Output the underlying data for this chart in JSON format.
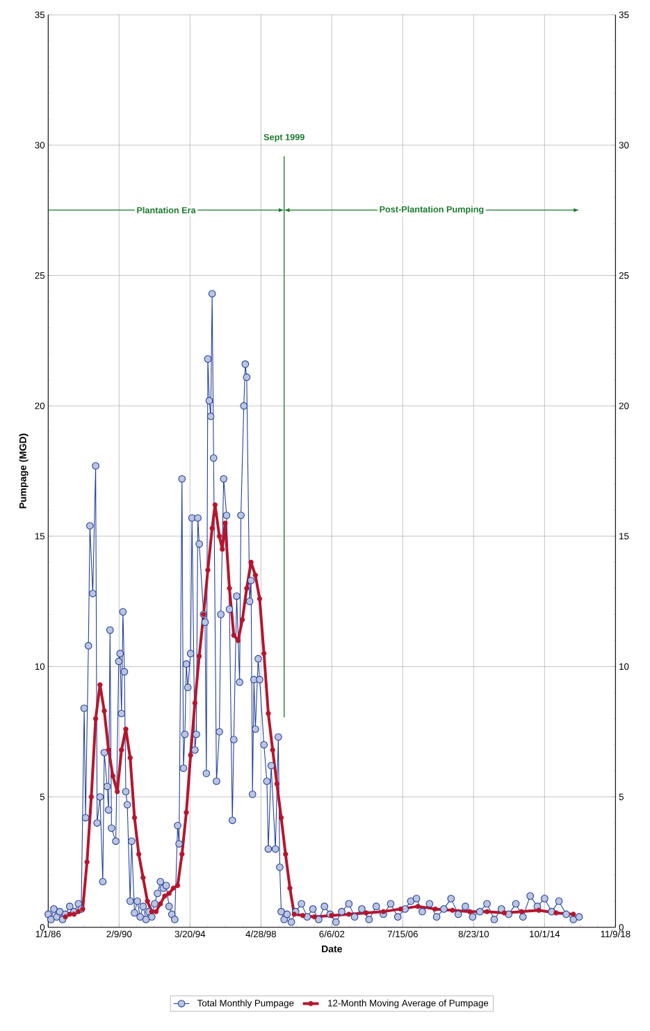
{
  "chart_data": {
    "type": "line",
    "xlabel": "Date",
    "ylabel": "Pumpage (MGD)",
    "xlim": [
      "1986-01-01",
      "2018-11-09"
    ],
    "xticks": [
      {
        "value": "1986-01-01",
        "label": "1/1/86"
      },
      {
        "value": "1990-02-09",
        "label": "2/9/90"
      },
      {
        "value": "1994-03-20",
        "label": "3/20/94"
      },
      {
        "value": "1998-04-28",
        "label": "4/28/98"
      },
      {
        "value": "2002-06-06",
        "label": "6/6/02"
      },
      {
        "value": "2006-07-15",
        "label": "7/15/06"
      },
      {
        "value": "2010-08-23",
        "label": "8/23/10"
      },
      {
        "value": "2014-10-01",
        "label": "10/1/14"
      },
      {
        "value": "2018-11-09",
        "label": "11/9/18"
      }
    ],
    "ylim": [
      0,
      35
    ],
    "yticks": [
      0,
      5,
      10,
      15,
      20,
      25,
      30,
      35
    ],
    "y2lim": [
      0,
      35
    ],
    "y2ticks": [
      0,
      5,
      10,
      15,
      20,
      25,
      30,
      35
    ],
    "grid": true,
    "legend": "bottom",
    "marker": "circle",
    "annotations": [
      "Plantation Era",
      "Post-Plantation Pumping"
    ],
    "ref_lines": [
      {
        "axis": "x",
        "value": "1999-09-01",
        "label": "Sept 1999",
        "color": "#1a7a2e"
      }
    ],
    "series": [
      {
        "name": "Total Monthly Pumpage",
        "color": "#1f3f99",
        "x": [
          "1986-01",
          "1986-03",
          "1986-05",
          "1986-07",
          "1986-09",
          "1986-11",
          "1987-01",
          "1987-04",
          "1987-07",
          "1987-10",
          "1987-12",
          "1988-02",
          "1988-03",
          "1988-05",
          "1988-06",
          "1988-08",
          "1988-10",
          "1988-11",
          "1989-01",
          "1989-03",
          "1989-04",
          "1989-06",
          "1989-07",
          "1989-08",
          "1989-09",
          "1989-12",
          "1990-02",
          "1990-03",
          "1990-04",
          "1990-05",
          "1990-06",
          "1990-07",
          "1990-08",
          "1990-10",
          "1990-11",
          "1991-01",
          "1991-03",
          "1991-05",
          "1991-07",
          "1991-09",
          "1991-11",
          "1992-01",
          "1992-03",
          "1992-05",
          "1992-07",
          "1992-09",
          "1992-11",
          "1993-01",
          "1993-03",
          "1993-05",
          "1993-07",
          "1993-08",
          "1993-10",
          "1993-11",
          "1993-12",
          "1994-01",
          "1994-02",
          "1994-04",
          "1994-05",
          "1994-07",
          "1994-08",
          "1994-09",
          "1994-10",
          "1995-01",
          "1995-02",
          "1995-03",
          "1995-04",
          "1995-05",
          "1995-06",
          "1995-07",
          "1995-08",
          "1995-10",
          "1995-12",
          "1996-01",
          "1996-03",
          "1996-05",
          "1996-07",
          "1996-09",
          "1996-10",
          "1996-12",
          "1997-02",
          "1997-03",
          "1997-05",
          "1997-06",
          "1997-07",
          "1997-09",
          "1997-10",
          "1997-11",
          "1997-12",
          "1998-01",
          "1998-03",
          "1998-04",
          "1998-07",
          "1998-09",
          "1998-10",
          "1998-12",
          "1999-03",
          "1999-05",
          "1999-06",
          "1999-07",
          "1999-09",
          "1999-11",
          "2000-02",
          "2000-05",
          "2000-09",
          "2001-01",
          "2001-05",
          "2001-09",
          "2002-01",
          "2002-05",
          "2002-09",
          "2003-01",
          "2003-06",
          "2003-10",
          "2004-03",
          "2004-08",
          "2005-01",
          "2005-06",
          "2005-11",
          "2006-04",
          "2006-09",
          "2007-01",
          "2007-05",
          "2007-09",
          "2008-02",
          "2008-07",
          "2008-12",
          "2009-05",
          "2009-10",
          "2010-03",
          "2010-08",
          "2011-01",
          "2011-06",
          "2011-11",
          "2012-04",
          "2012-09",
          "2013-02",
          "2013-07",
          "2013-12",
          "2014-05",
          "2014-10",
          "2015-03",
          "2015-08",
          "2016-01",
          "2016-06",
          "2016-10"
        ],
        "values": [
          0.5,
          0.3,
          0.7,
          0.4,
          0.6,
          0.3,
          0.5,
          0.8,
          0.6,
          0.9,
          0.7,
          8.4,
          4.2,
          10.8,
          15.4,
          12.8,
          17.7,
          4.0,
          5.0,
          1.75,
          6.7,
          5.4,
          4.5,
          11.4,
          3.8,
          3.3,
          10.2,
          10.5,
          8.2,
          12.1,
          9.8,
          5.2,
          4.7,
          1.0,
          3.3,
          0.55,
          1.0,
          0.4,
          0.8,
          0.3,
          0.6,
          0.4,
          0.9,
          1.3,
          1.75,
          1.5,
          1.6,
          0.8,
          0.5,
          0.3,
          3.9,
          3.2,
          17.2,
          6.1,
          7.4,
          10.1,
          9.2,
          10.5,
          15.7,
          6.8,
          7.4,
          15.7,
          14.7,
          12.0,
          11.7,
          5.9,
          21.8,
          20.2,
          19.6,
          24.3,
          18.0,
          5.6,
          7.5,
          12.0,
          17.2,
          15.8,
          12.2,
          4.1,
          7.2,
          12.7,
          9.4,
          15.8,
          20.0,
          21.6,
          21.1,
          12.5,
          13.3,
          5.1,
          9.5,
          7.6,
          10.3,
          9.5,
          7.0,
          5.6,
          3.0,
          6.2,
          3.0,
          7.3,
          2.3,
          0.6,
          0.3,
          0.5,
          0.2,
          0.6,
          0.9,
          0.4,
          0.7,
          0.3,
          0.8,
          0.5,
          0.2,
          0.6,
          0.9,
          0.4,
          0.7,
          0.3,
          0.8,
          0.5,
          0.9,
          0.4,
          0.7,
          1.0,
          1.1,
          0.6,
          0.9,
          0.4,
          0.7,
          1.1,
          0.5,
          0.8,
          0.4,
          0.6,
          0.9,
          0.3,
          0.7,
          0.5,
          0.9,
          0.4,
          1.2,
          0.8,
          1.1,
          0.6,
          1.0,
          0.5,
          0.3,
          0.4
        ]
      },
      {
        "name": "12-Month Moving Average of Pumpage",
        "color": "#b5162e",
        "x": [
          "1987-01",
          "1987-04",
          "1987-07",
          "1987-10",
          "1988-01",
          "1988-04",
          "1988-07",
          "1988-10",
          "1989-01",
          "1989-04",
          "1989-07",
          "1989-10",
          "1990-01",
          "1990-04",
          "1990-07",
          "1990-10",
          "1991-01",
          "1991-04",
          "1991-07",
          "1991-10",
          "1992-01",
          "1992-04",
          "1992-07",
          "1992-10",
          "1993-01",
          "1993-04",
          "1993-07",
          "1993-10",
          "1994-01",
          "1994-04",
          "1994-07",
          "1994-10",
          "1995-01",
          "1995-04",
          "1995-07",
          "1995-09",
          "1995-12",
          "1996-02",
          "1996-04",
          "1996-07",
          "1996-10",
          "1997-01",
          "1997-04",
          "1997-07",
          "1997-10",
          "1998-01",
          "1998-04",
          "1998-07",
          "1998-10",
          "1999-01",
          "1999-04",
          "1999-07",
          "1999-10",
          "2000-01",
          "2000-04",
          "2000-10",
          "2001-06",
          "2002-06",
          "2003-06",
          "2004-06",
          "2005-06",
          "2006-06",
          "2007-06",
          "2008-06",
          "2009-06",
          "2010-06",
          "2011-06",
          "2012-06",
          "2013-06",
          "2014-06",
          "2015-06",
          "2016-06"
        ],
        "values": [
          0.4,
          0.5,
          0.5,
          0.6,
          0.7,
          2.5,
          5.0,
          8.0,
          9.3,
          8.3,
          6.8,
          5.8,
          5.2,
          6.8,
          7.6,
          6.5,
          4.2,
          2.8,
          1.9,
          1.0,
          0.6,
          0.6,
          0.9,
          1.2,
          1.3,
          1.5,
          1.6,
          2.8,
          4.4,
          6.6,
          8.6,
          10.4,
          12.0,
          13.7,
          15.3,
          16.2,
          15.0,
          14.5,
          15.5,
          13.0,
          11.2,
          11.0,
          11.8,
          13.0,
          14.0,
          13.5,
          12.6,
          10.5,
          8.2,
          6.8,
          5.5,
          4.2,
          2.8,
          1.5,
          0.5,
          0.45,
          0.4,
          0.45,
          0.5,
          0.55,
          0.6,
          0.7,
          0.8,
          0.7,
          0.65,
          0.6,
          0.6,
          0.55,
          0.6,
          0.65,
          0.55,
          0.5
        ]
      }
    ]
  }
}
